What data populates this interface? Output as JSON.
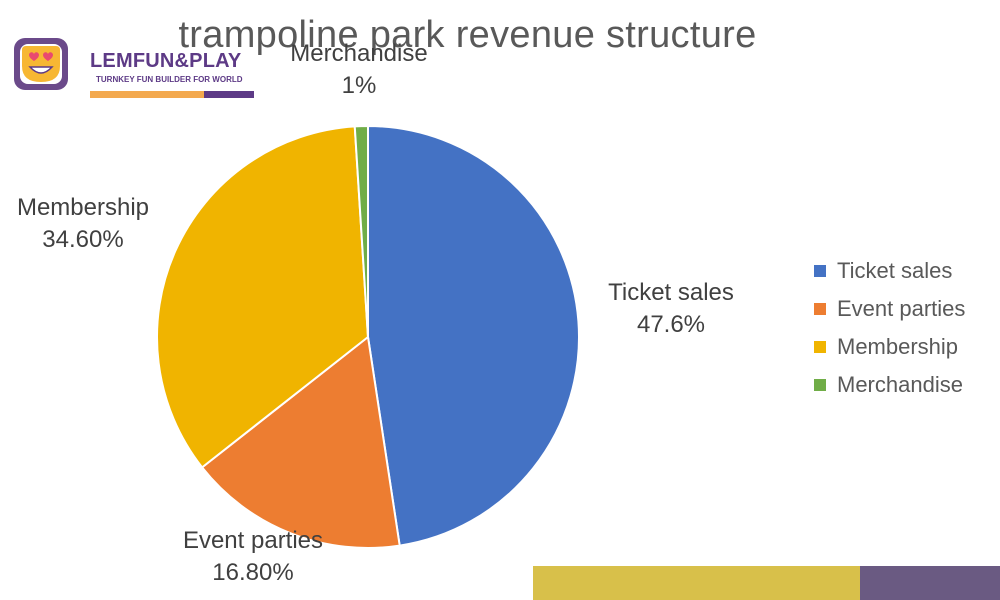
{
  "logo": {
    "name": "LEMFUN&PLAY",
    "tagline": "TURNKEY FUN BUILDER FOR WORLD",
    "colors": {
      "purple": "#5d3a86",
      "orange": "#f3a94e",
      "face": "#f7b733",
      "eyes": "#e94a6f"
    }
  },
  "chart_data": {
    "type": "pie",
    "title": "trampoline park revenue structure",
    "slices": [
      {
        "name": "Ticket sales",
        "value": 47.6,
        "label": "47.6%",
        "color": "#4472c4"
      },
      {
        "name": "Event parties",
        "value": 16.8,
        "label": "16.80%",
        "color": "#ed7d31"
      },
      {
        "name": "Membership",
        "value": 34.6,
        "label": "34.60%",
        "color": "#f0b400"
      },
      {
        "name": "Merchandise",
        "value": 1,
        "label": "1%",
        "color": "#70ad47"
      }
    ],
    "legend_position": "right",
    "start": "12 o'clock, clockwise"
  },
  "decor": {
    "bar_gold": "#d8c04a",
    "bar_purple": "#6a5a82"
  }
}
